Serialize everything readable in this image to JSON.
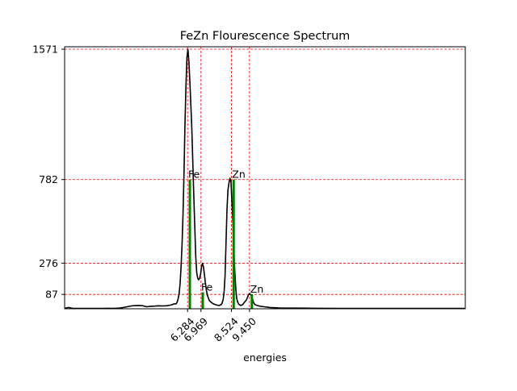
{
  "chart_data": {
    "type": "line",
    "title": "FeZn Flourescence Spectrum",
    "xlabel": "energies",
    "ylabel": "",
    "xlim": [
      0,
      20.48
    ],
    "ylim": [
      0,
      1571
    ],
    "grid": "dashed red at tick positions",
    "x_ticks": [
      6.284,
      6.969,
      8.524,
      9.45
    ],
    "x_tick_labels": [
      "6.284",
      "6.969",
      "8.524",
      "9.450"
    ],
    "y_ticks": [
      87,
      276,
      782,
      1571
    ],
    "y_tick_labels": [
      "87",
      "276",
      "782",
      "1571"
    ],
    "colors": {
      "spectrum": "#000000",
      "peaks": "#008000",
      "grid": "#ff0000"
    },
    "peak_markers": [
      {
        "label": "Fe",
        "x": 6.4,
        "value": 782
      },
      {
        "label": "Fe",
        "x": 7.06,
        "value": 100
      },
      {
        "label": "Zn",
        "x": 8.64,
        "value": 782
      },
      {
        "label": "Zn",
        "x": 9.57,
        "value": 87
      }
    ],
    "series": [
      {
        "x": [
          0.0,
          0.2,
          0.4,
          0.6,
          0.8,
          1.0,
          1.2,
          1.4,
          1.6,
          1.8,
          2.0,
          2.2,
          2.4,
          2.6,
          2.8,
          3.0,
          3.2,
          3.4,
          3.6,
          3.8,
          4.0,
          4.2,
          4.4,
          4.6,
          4.8,
          5.0,
          5.2,
          5.4,
          5.5,
          5.6,
          5.7,
          5.75,
          5.8,
          5.85,
          5.9,
          5.95,
          6.0,
          6.05,
          6.1,
          6.15,
          6.2,
          6.25,
          6.3,
          6.35,
          6.4,
          6.5,
          6.55,
          6.6,
          6.65,
          6.7,
          6.75,
          6.8,
          6.85,
          6.9,
          6.95,
          7.0,
          7.05,
          7.1,
          7.15,
          7.2,
          7.25,
          7.3,
          7.4,
          7.5,
          7.6,
          7.7,
          7.8,
          7.9,
          8.0,
          8.05,
          8.1,
          8.15,
          8.2,
          8.25,
          8.3,
          8.35,
          8.4,
          8.45,
          8.5,
          8.55,
          8.6,
          8.65,
          8.7,
          8.75,
          8.8,
          8.85,
          8.9,
          9.0,
          9.1,
          9.2,
          9.3,
          9.4,
          9.45,
          9.5,
          9.55,
          9.6,
          9.65,
          9.7,
          9.75,
          9.8,
          9.9,
          10.0,
          10.2,
          10.5,
          11.0,
          12.0,
          13.0,
          14.0,
          15.0,
          16.0,
          17.0,
          18.0,
          19.0,
          20.0,
          20.48
        ],
        "values": [
          3,
          8,
          3,
          2,
          2,
          2,
          2,
          2,
          2,
          2,
          2,
          3,
          2,
          3,
          4,
          8,
          12,
          17,
          19,
          20,
          18,
          12,
          15,
          16,
          18,
          17,
          18,
          22,
          25,
          30,
          30,
          40,
          60,
          90,
          150,
          250,
          380,
          560,
          800,
          1100,
          1350,
          1520,
          1571,
          1500,
          1380,
          1100,
          900,
          700,
          500,
          320,
          220,
          185,
          175,
          185,
          210,
          255,
          275,
          250,
          200,
          150,
          110,
          80,
          50,
          38,
          30,
          25,
          22,
          20,
          25,
          35,
          55,
          100,
          200,
          400,
          600,
          720,
          760,
          790,
          770,
          650,
          520,
          350,
          220,
          120,
          60,
          40,
          28,
          20,
          25,
          40,
          55,
          85,
          92,
          87,
          78,
          60,
          40,
          30,
          24,
          22,
          18,
          15,
          12,
          8,
          5,
          4,
          3,
          2,
          2,
          2,
          2,
          2,
          2,
          2,
          2
        ]
      }
    ]
  }
}
